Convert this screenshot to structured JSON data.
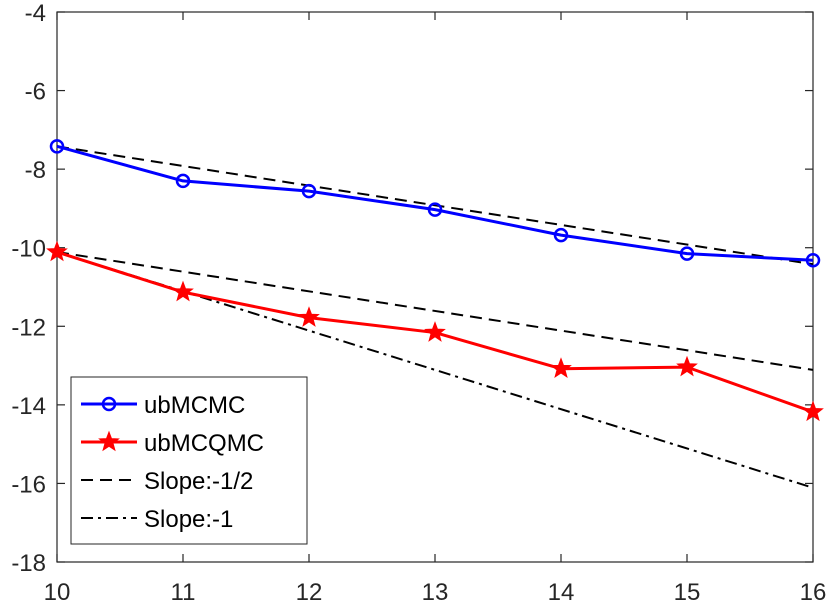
{
  "chart_data": {
    "type": "line",
    "title": "",
    "xlabel": "",
    "ylabel": "",
    "xlim": [
      10,
      16
    ],
    "ylim": [
      -18,
      -4
    ],
    "x_ticks": [
      "10",
      "11",
      "12",
      "13",
      "14",
      "15",
      "16"
    ],
    "y_ticks": [
      "-18",
      "-16",
      "-14",
      "-12",
      "-10",
      "-8",
      "-6",
      "-4"
    ],
    "x": [
      10,
      11,
      12,
      13,
      14,
      15,
      16
    ],
    "series": [
      {
        "name": "ubMCMC",
        "values": [
          -7.42,
          -8.3,
          -8.56,
          -9.03,
          -9.68,
          -10.15,
          -10.32
        ],
        "color": "#0000ff",
        "marker": "circle",
        "dash": "solid"
      },
      {
        "name": "ubMCQMC",
        "values": [
          -10.11,
          -11.13,
          -11.78,
          -12.16,
          -13.08,
          -13.04,
          -14.18
        ],
        "color": "#ff0000",
        "marker": "star",
        "dash": "solid"
      },
      {
        "name": "Slope:-1/2",
        "x": [
          10,
          16
        ],
        "values": [
          -7.42,
          -10.42
        ],
        "color": "#000000",
        "marker": "none",
        "dash": "dashed"
      },
      {
        "name": "Slope:-1/2",
        "x": [
          10,
          16
        ],
        "values": [
          -10.11,
          -13.11
        ],
        "color": "#000000",
        "marker": "none",
        "dash": "dashed",
        "hide_in_legend": true
      },
      {
        "name": "Slope:-1",
        "x": [
          10,
          16
        ],
        "values": [
          -10.11,
          -16.11
        ],
        "color": "#000000",
        "marker": "none",
        "dash": "dashdot"
      }
    ],
    "legend": {
      "position": "bottom-left",
      "entries": [
        "ubMCMC",
        "ubMCQMC",
        "Slope:-1/2",
        "Slope:-1"
      ]
    },
    "grid": false
  }
}
